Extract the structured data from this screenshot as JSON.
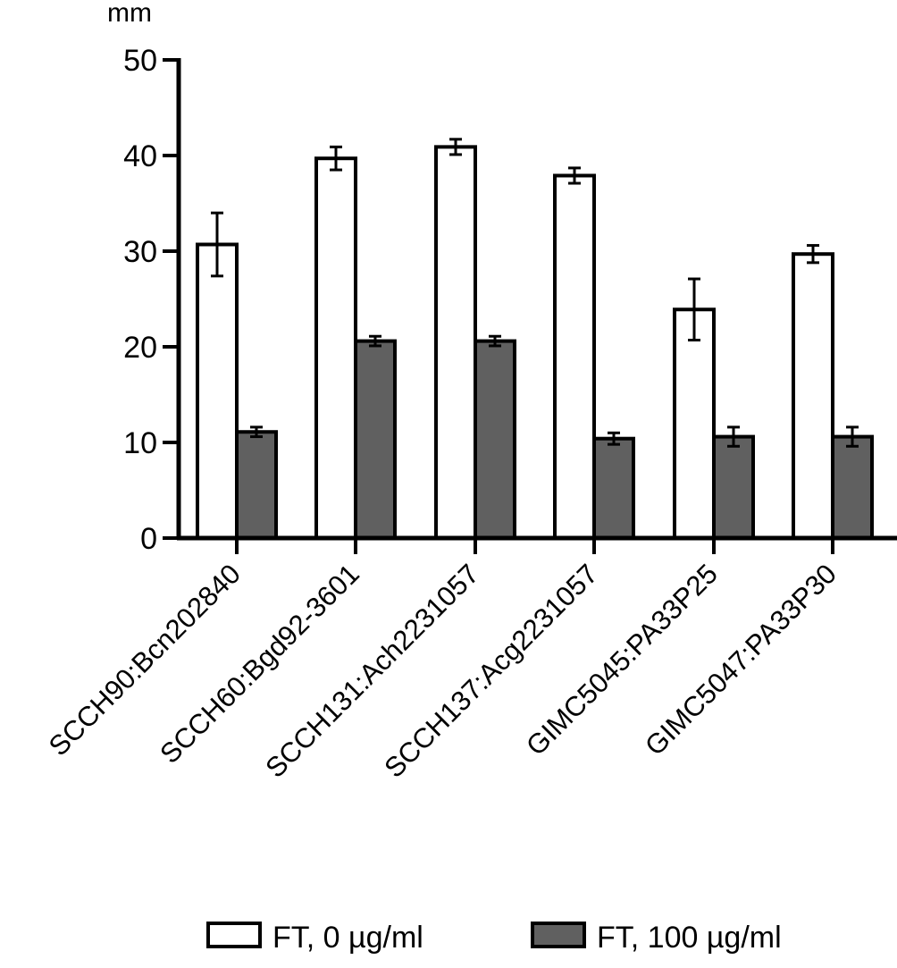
{
  "chart_data": {
    "type": "bar",
    "unit_label": "mm",
    "title": "",
    "xlabel": "",
    "ylabel": "mm",
    "ylim": [
      0,
      50
    ],
    "yticks": [
      0,
      10,
      20,
      30,
      40,
      50
    ],
    "ytick_labels": [
      "0",
      "10",
      "20",
      "30",
      "40",
      "50"
    ],
    "categories": [
      "SCCH90:Bcn202840",
      "SCCH60:Bgd92-3601",
      "SCCH131:Ach2231057",
      "SCCH137:Acg2231057",
      "GIMC5045:PA33P25",
      "GIMC5047:PA33P30"
    ],
    "series": [
      {
        "name": "FT, 0 µg/ml",
        "color": "#ffffff",
        "values": [
          30.7,
          39.7,
          40.9,
          37.9,
          23.9,
          29.7
        ],
        "errors": [
          3.3,
          1.2,
          0.8,
          0.8,
          3.2,
          0.9
        ]
      },
      {
        "name": "FT, 100 µg/ml",
        "color": "#606060",
        "values": [
          11.1,
          20.6,
          20.6,
          10.4,
          10.6,
          10.6
        ],
        "errors": [
          0.5,
          0.5,
          0.5,
          0.6,
          1.0,
          1.0
        ]
      }
    ],
    "legend_position": "bottom-center"
  }
}
